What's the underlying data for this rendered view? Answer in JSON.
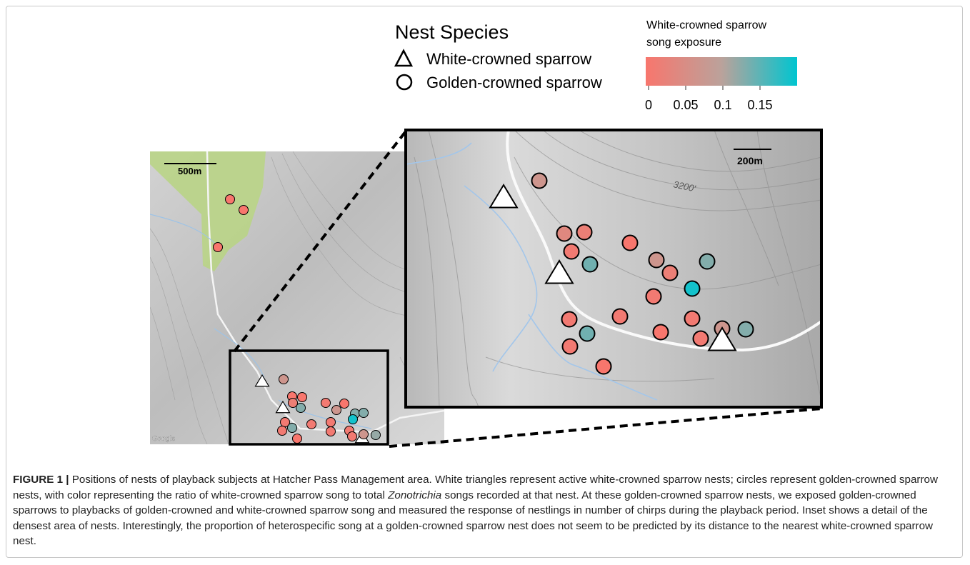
{
  "legend": {
    "title": "Nest Species",
    "entries": [
      "White-crowned sparrow",
      "Golden-crowned sparrow"
    ]
  },
  "colorbar": {
    "title": [
      "White-crowned sparrow",
      "song exposure"
    ],
    "lim": [
      0,
      0.2
    ],
    "ticks": [
      0,
      0.05,
      0.1,
      0.15
    ],
    "colors": [
      "#f8766d",
      "#bba29b",
      "#00c5d0"
    ]
  },
  "overview": {
    "scale": "500m",
    "attribution": "Google",
    "nests": [
      0,
      0,
      0,
      0.07,
      0,
      0,
      0.02,
      0.13,
      0.01,
      0,
      0.07,
      0.13,
      0.13,
      0.19,
      0.01,
      0.13,
      0.01,
      0.01,
      0.01,
      0.01,
      0.01,
      0.01,
      0,
      0.07,
      0.12
    ]
  },
  "inset": {
    "scale": "200m",
    "contour_labels": [
      "3200'"
    ],
    "nests": [
      0.07,
      0.04,
      0.02,
      0.01,
      0.14,
      0,
      0.07,
      0.02,
      0.13,
      0.01,
      0.19,
      0.01,
      0.01,
      0.01,
      0.14,
      0,
      0.01,
      0.07,
      0.13,
      0.01,
      0
    ]
  },
  "caption": {
    "label": "FIGURE 1 |",
    "text": [
      "Positions of nests of playback subjects at Hatcher Pass Management area. White triangles represent active white-crowned sparrow nests; circles represent golden-crowned sparrow nests, with color representing the ratio of white-crowned sparrow song to total",
      "songs recorded at that nest. At these golden-crowned sparrow nests, we exposed golden-crowned sparrows to playbacks of golden-crowned and white-crowned sparrow song and measured the response of nestlings in number of chirps during the playback period. Inset shows a detail of the densest area of nests. Interestingly, the proportion of heterospecific song at a golden-crowned sparrow nest does not seem to be predicted by its distance to the nearest white-crowned sparrow nest."
    ],
    "italic": "Zonotrichia"
  }
}
